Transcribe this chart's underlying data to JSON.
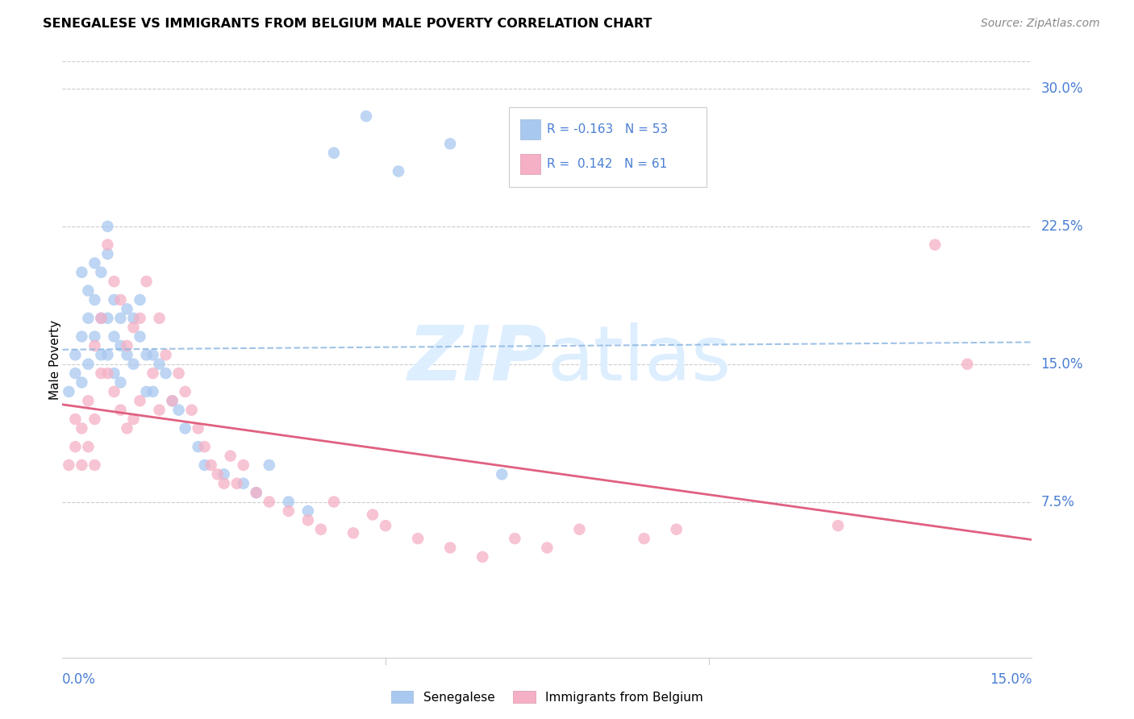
{
  "title": "SENEGALESE VS IMMIGRANTS FROM BELGIUM MALE POVERTY CORRELATION CHART",
  "source": "Source: ZipAtlas.com",
  "ylabel": "Male Poverty",
  "ytick_labels": [
    "7.5%",
    "15.0%",
    "22.5%",
    "30.0%"
  ],
  "ytick_values": [
    0.075,
    0.15,
    0.225,
    0.3
  ],
  "xmin": 0.0,
  "xmax": 0.15,
  "ymin": -0.01,
  "ymax": 0.315,
  "color_senegalese": "#a8c8f0",
  "color_belgium": "#f5b0c5",
  "color_line_senegalese": "#4a7bbf",
  "color_line_belgium": "#e06080",
  "color_line_dashed": "#8ab4e0",
  "color_axis_labels": "#4a7fd4",
  "color_grid": "#cccccc",
  "watermark_color": "#ddeeff",
  "senegalese_x": [
    0.001,
    0.002,
    0.002,
    0.003,
    0.003,
    0.003,
    0.004,
    0.004,
    0.004,
    0.005,
    0.005,
    0.005,
    0.006,
    0.006,
    0.006,
    0.007,
    0.007,
    0.007,
    0.007,
    0.008,
    0.008,
    0.008,
    0.009,
    0.009,
    0.009,
    0.01,
    0.01,
    0.011,
    0.011,
    0.012,
    0.012,
    0.013,
    0.013,
    0.014,
    0.014,
    0.015,
    0.016,
    0.017,
    0.018,
    0.019,
    0.021,
    0.022,
    0.025,
    0.028,
    0.03,
    0.032,
    0.035,
    0.038,
    0.042,
    0.047,
    0.052,
    0.06,
    0.068
  ],
  "senegalese_y": [
    0.135,
    0.155,
    0.145,
    0.2,
    0.165,
    0.14,
    0.19,
    0.175,
    0.15,
    0.205,
    0.185,
    0.165,
    0.2,
    0.175,
    0.155,
    0.225,
    0.21,
    0.175,
    0.155,
    0.185,
    0.165,
    0.145,
    0.175,
    0.16,
    0.14,
    0.18,
    0.155,
    0.175,
    0.15,
    0.185,
    0.165,
    0.155,
    0.135,
    0.155,
    0.135,
    0.15,
    0.145,
    0.13,
    0.125,
    0.115,
    0.105,
    0.095,
    0.09,
    0.085,
    0.08,
    0.095,
    0.075,
    0.07,
    0.265,
    0.285,
    0.255,
    0.27,
    0.09
  ],
  "belgium_x": [
    0.001,
    0.002,
    0.002,
    0.003,
    0.003,
    0.004,
    0.004,
    0.005,
    0.005,
    0.005,
    0.006,
    0.006,
    0.007,
    0.007,
    0.008,
    0.008,
    0.009,
    0.009,
    0.01,
    0.01,
    0.011,
    0.011,
    0.012,
    0.012,
    0.013,
    0.014,
    0.015,
    0.015,
    0.016,
    0.017,
    0.018,
    0.019,
    0.02,
    0.021,
    0.022,
    0.023,
    0.024,
    0.025,
    0.026,
    0.027,
    0.028,
    0.03,
    0.032,
    0.035,
    0.038,
    0.04,
    0.042,
    0.045,
    0.048,
    0.05,
    0.055,
    0.06,
    0.065,
    0.07,
    0.075,
    0.08,
    0.09,
    0.095,
    0.12,
    0.135,
    0.14
  ],
  "belgium_y": [
    0.095,
    0.105,
    0.12,
    0.115,
    0.095,
    0.13,
    0.105,
    0.16,
    0.12,
    0.095,
    0.175,
    0.145,
    0.215,
    0.145,
    0.195,
    0.135,
    0.185,
    0.125,
    0.16,
    0.115,
    0.17,
    0.12,
    0.175,
    0.13,
    0.195,
    0.145,
    0.175,
    0.125,
    0.155,
    0.13,
    0.145,
    0.135,
    0.125,
    0.115,
    0.105,
    0.095,
    0.09,
    0.085,
    0.1,
    0.085,
    0.095,
    0.08,
    0.075,
    0.07,
    0.065,
    0.06,
    0.075,
    0.058,
    0.068,
    0.062,
    0.055,
    0.05,
    0.045,
    0.055,
    0.05,
    0.06,
    0.055,
    0.06,
    0.062,
    0.215,
    0.15
  ]
}
